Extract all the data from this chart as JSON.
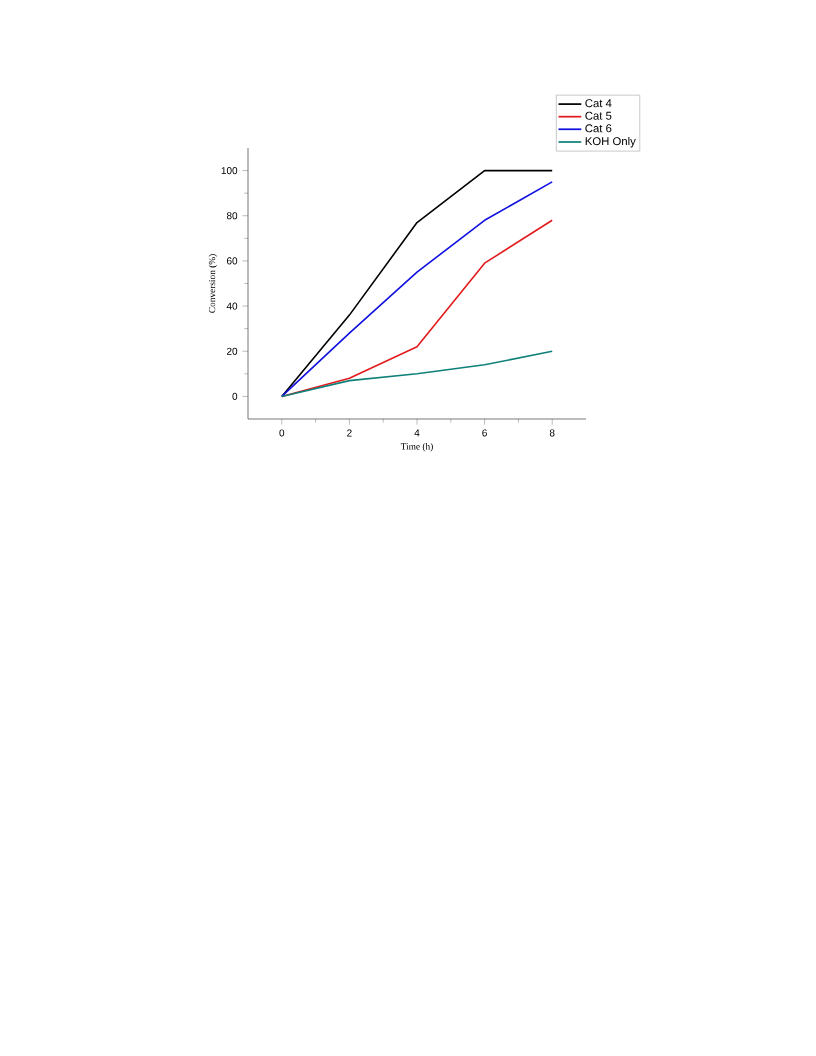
{
  "chart_data": {
    "type": "line",
    "xlabel": "Time (h)",
    "ylabel": "Conversion (%)",
    "x": [
      0,
      2,
      4,
      6,
      8
    ],
    "series": [
      {
        "name": "Cat 4",
        "color": "#000000",
        "values": [
          0,
          36,
          77,
          100,
          100
        ]
      },
      {
        "name": "Cat 5",
        "color": "#e31a1c",
        "values": [
          0,
          8,
          22,
          59,
          78
        ]
      },
      {
        "name": "Cat 6",
        "color": "#1010e0",
        "values": [
          0,
          28,
          55,
          78,
          95
        ]
      },
      {
        "name": "KOH Only",
        "color": "#10807a",
        "values": [
          0,
          7,
          10,
          14,
          20
        ]
      }
    ],
    "xlim": [
      -1,
      9
    ],
    "ylim": [
      -10,
      110
    ],
    "xticks": [
      0,
      2,
      4,
      6,
      8
    ],
    "yticks": [
      0,
      20,
      40,
      60,
      80,
      100
    ],
    "legend": "top right",
    "marker": "none",
    "line_style": "solid",
    "grid": false
  }
}
